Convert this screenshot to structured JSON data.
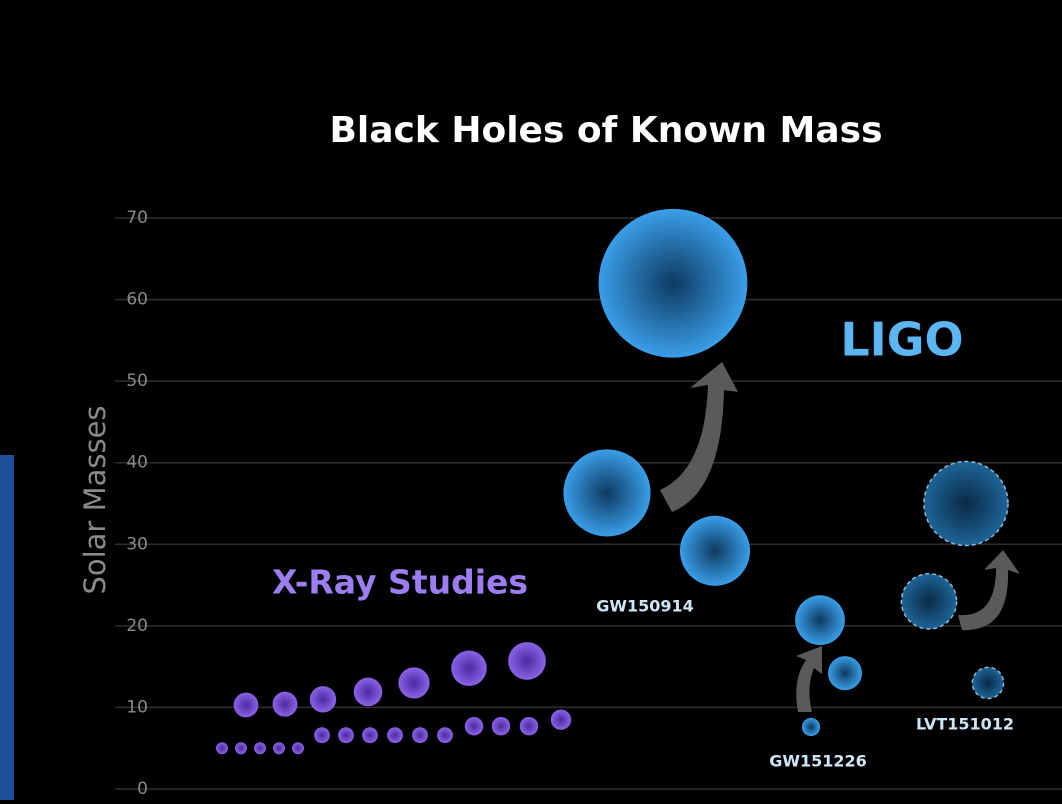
{
  "chart_data": {
    "type": "bubble",
    "title": "Black Holes of Known Mass",
    "y_label": "Solar Masses",
    "ylim": [
      0,
      70
    ],
    "yticks": [
      0,
      10,
      20,
      30,
      40,
      50,
      60,
      70
    ],
    "grid": true,
    "series": [
      {
        "name": "X-Ray Studies",
        "color": "#8b63e8",
        "values": [
          5,
          5,
          5,
          5,
          5,
          6.6,
          6.6,
          6.6,
          6.6,
          6.6,
          6.6,
          7.7,
          7.7,
          7.7,
          8.5,
          10.3,
          10.4,
          11,
          11.9,
          13,
          14.8,
          15.7
        ]
      }
    ],
    "ligo": {
      "name": "LIGO",
      "color": "#3a9ee8",
      "events": [
        {
          "name": "GW150914",
          "components": [
            36.3,
            29.2
          ],
          "final": 62
        },
        {
          "name": "GW151226",
          "components": [
            14.2,
            7.6
          ],
          "final": 20.7
        },
        {
          "name": "LVT151012",
          "components": [
            23,
            13
          ],
          "final": 35,
          "candidate": true
        }
      ]
    }
  }
}
